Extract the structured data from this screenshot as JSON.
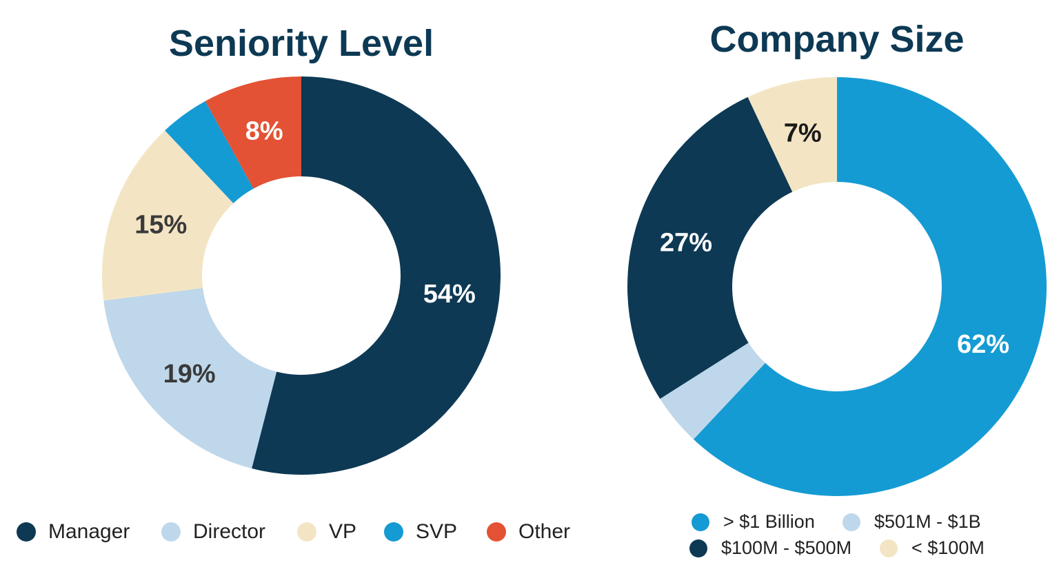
{
  "chart_data": [
    {
      "type": "pie",
      "donut": true,
      "title": "Seniority Level",
      "categories": [
        "Manager",
        "Director",
        "VP",
        "SVP",
        "Other"
      ],
      "values": [
        54,
        19,
        15,
        4,
        8
      ],
      "labels": [
        "54%",
        "19%",
        "15%",
        "",
        "8%"
      ],
      "colors": [
        "#0d3954",
        "#bfd7ea",
        "#f3e5c4",
        "#159bd3",
        "#e35234"
      ],
      "label_colors": [
        "#ffffff",
        "#3a3a3a",
        "#3a3a3a",
        "#ffffff",
        "#ffffff"
      ],
      "legend_position": "bottom"
    },
    {
      "type": "pie",
      "donut": true,
      "title": "Company Size",
      "categories": [
        "> $1 Billion",
        "$501M - $1B",
        "$100M - $500M",
        "< $100M"
      ],
      "values": [
        62,
        4,
        27,
        7
      ],
      "labels": [
        "62%",
        "",
        "27%",
        "7%"
      ],
      "colors": [
        "#159bd3",
        "#bfd7ea",
        "#0d3954",
        "#f3e5c4"
      ],
      "label_colors": [
        "#ffffff",
        "#3a3a3a",
        "#ffffff",
        "#1a1a1a"
      ],
      "legend_position": "bottom"
    }
  ]
}
